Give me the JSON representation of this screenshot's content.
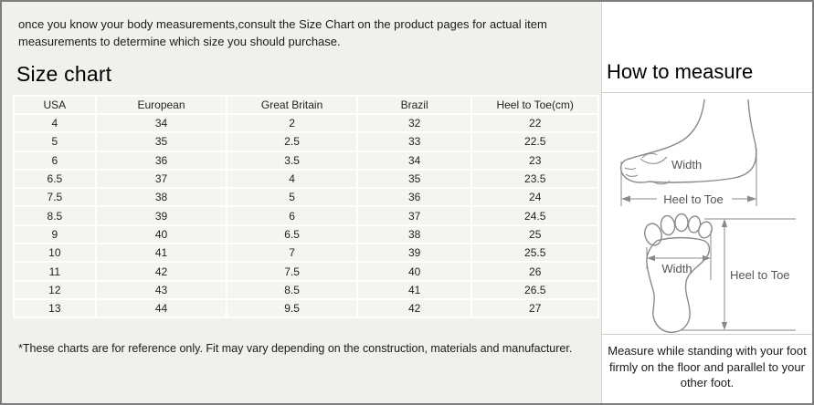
{
  "intro": {
    "text": "once you know your body measurements,consult the Size Chart on the product pages for actual item measurements to determine which size you should purchase."
  },
  "size_chart": {
    "title": "Size chart",
    "footnote": "*These charts are for reference only. Fit may vary depending on the construction, materials and manufacturer."
  },
  "chart_data": {
    "type": "table",
    "columns": [
      "USA",
      "European",
      "Great Britain",
      "Brazil",
      "Heel to Toe(cm)"
    ],
    "rows": [
      [
        "4",
        "34",
        "2",
        "32",
        "22"
      ],
      [
        "5",
        "35",
        "2.5",
        "33",
        "22.5"
      ],
      [
        "6",
        "36",
        "3.5",
        "34",
        "23"
      ],
      [
        "6.5",
        "37",
        "4",
        "35",
        "23.5"
      ],
      [
        "7.5",
        "38",
        "5",
        "36",
        "24"
      ],
      [
        "8.5",
        "39",
        "6",
        "37",
        "24.5"
      ],
      [
        "9",
        "40",
        "6.5",
        "38",
        "25"
      ],
      [
        "10",
        "41",
        "7",
        "39",
        "25.5"
      ],
      [
        "11",
        "42",
        "7.5",
        "40",
        "26"
      ],
      [
        "12",
        "43",
        "8.5",
        "41",
        "26.5"
      ],
      [
        "13",
        "44",
        "9.5",
        "42",
        "27"
      ]
    ]
  },
  "how_to_measure": {
    "title": "How to measure",
    "side_diagram": {
      "width_label": "Width",
      "heel_to_toe_label": "Heel to Toe"
    },
    "sole_diagram": {
      "width_label": "Width",
      "heel_to_toe_label": "Heel to Toe"
    },
    "instruction": "Measure while standing with your foot firmly on the floor and parallel to your other foot."
  },
  "colors": {
    "left_background": "#f1f0ec",
    "right_background": "#ffffff",
    "table_cell": "#f5f4ef",
    "frame_border": "#7d7d7d",
    "diagram_stroke": "#8a8a8a"
  }
}
